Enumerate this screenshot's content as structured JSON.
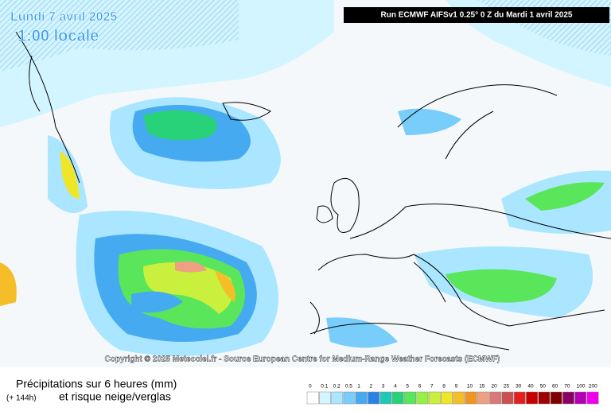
{
  "header": {
    "date": "Lundi 7 avril 2025",
    "time": "1:00 locale",
    "run": "Run ECMWF AIFSv1 0.25° 0 Z du Mardi 1 avril 2025"
  },
  "copyright": "Copyright © 2025 Meteociel.fr - Source European Centre for Medium-Range Weather Forecasts (ECMWF)",
  "legend": {
    "title": "Précipitations sur 6 heures (mm)",
    "lead": "(+ 144h)",
    "subtitle": "et risque neige/verglas",
    "steps": [
      {
        "label": 0,
        "color": "#ffffff"
      },
      {
        "label": 0.1,
        "color": "#d2f5ff"
      },
      {
        "label": 0.2,
        "color": "#aae6ff"
      },
      {
        "label": 0.5,
        "color": "#78cdfa"
      },
      {
        "label": 1,
        "color": "#46aaf0"
      },
      {
        "label": 2,
        "color": "#2882e6"
      },
      {
        "label": 3,
        "color": "#1ec8b4"
      },
      {
        "label": 4,
        "color": "#28d278"
      },
      {
        "label": 5,
        "color": "#5ae65a"
      },
      {
        "label": 6,
        "color": "#96f046"
      },
      {
        "label": 7,
        "color": "#c8f03c"
      },
      {
        "label": 8,
        "color": "#f0e628"
      },
      {
        "label": 9,
        "color": "#f5be28"
      },
      {
        "label": 10,
        "color": "#f0961e"
      },
      {
        "label": 15,
        "color": "#f0a082"
      },
      {
        "label": 20,
        "color": "#dc7878"
      },
      {
        "label": 25,
        "color": "#c85050"
      },
      {
        "label": 30,
        "color": "#e61e1e"
      },
      {
        "label": 40,
        "color": "#c80000"
      },
      {
        "label": 50,
        "color": "#a00000"
      },
      {
        "label": 60,
        "color": "#800000"
      },
      {
        "label": 70,
        "color": "#8c0064"
      },
      {
        "label": 100,
        "color": "#b400b4"
      },
      {
        "label": 200,
        "color": "#f000f0"
      }
    ]
  }
}
